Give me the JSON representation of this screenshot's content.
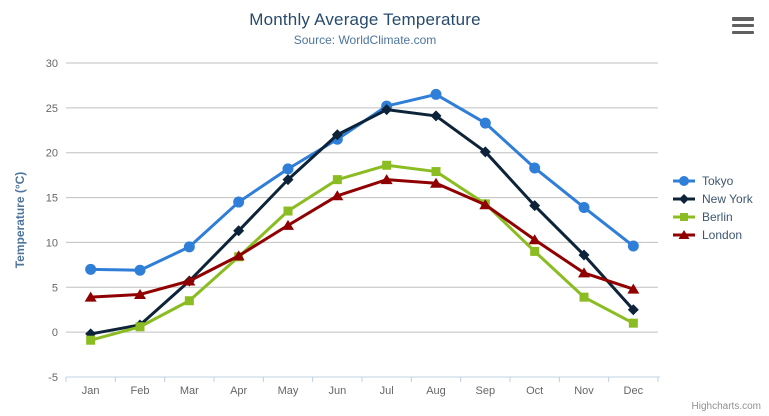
{
  "credits": "Highcharts.com",
  "export_menu": {
    "icon": "hamburger-menu-icon"
  },
  "colors": {
    "title": "#274b6d",
    "subtitle": "#4d759e",
    "axis_label": "#666666",
    "axis_title": "#4d759e",
    "grid_line": "#c0c0c0",
    "axis_line": "#c0d0e0",
    "legend_text": "#3e576f",
    "credits_text": "#909090"
  },
  "chart_data": {
    "type": "line",
    "title": "Monthly Average Temperature",
    "subtitle": "Source: WorldClimate.com",
    "categories": [
      "Jan",
      "Feb",
      "Mar",
      "Apr",
      "May",
      "Jun",
      "Jul",
      "Aug",
      "Sep",
      "Oct",
      "Nov",
      "Dec"
    ],
    "xlabel": "",
    "ylabel": "Temperature (°C)",
    "ylim": [
      -5,
      30
    ],
    "yticks": [
      -5,
      0,
      5,
      10,
      15,
      20,
      25,
      30
    ],
    "grid": true,
    "legend_position": "right",
    "series": [
      {
        "name": "Tokyo",
        "color": "#2f7ed8",
        "marker": "circle",
        "values": [
          7.0,
          6.9,
          9.5,
          14.5,
          18.2,
          21.5,
          25.2,
          26.5,
          23.3,
          18.3,
          13.9,
          9.6
        ]
      },
      {
        "name": "New York",
        "color": "#0d233a",
        "marker": "diamond",
        "values": [
          -0.2,
          0.8,
          5.7,
          11.3,
          17.0,
          22.0,
          24.8,
          24.1,
          20.1,
          14.1,
          8.6,
          2.5
        ]
      },
      {
        "name": "Berlin",
        "color": "#8bbc21",
        "marker": "square",
        "values": [
          -0.9,
          0.6,
          3.5,
          8.4,
          13.5,
          17.0,
          18.6,
          17.9,
          14.3,
          9.0,
          3.9,
          1.0
        ]
      },
      {
        "name": "London",
        "color": "#910000",
        "marker": "triangle",
        "values": [
          3.9,
          4.2,
          5.7,
          8.5,
          11.9,
          15.2,
          17.0,
          16.6,
          14.2,
          10.3,
          6.6,
          4.8
        ]
      }
    ]
  }
}
